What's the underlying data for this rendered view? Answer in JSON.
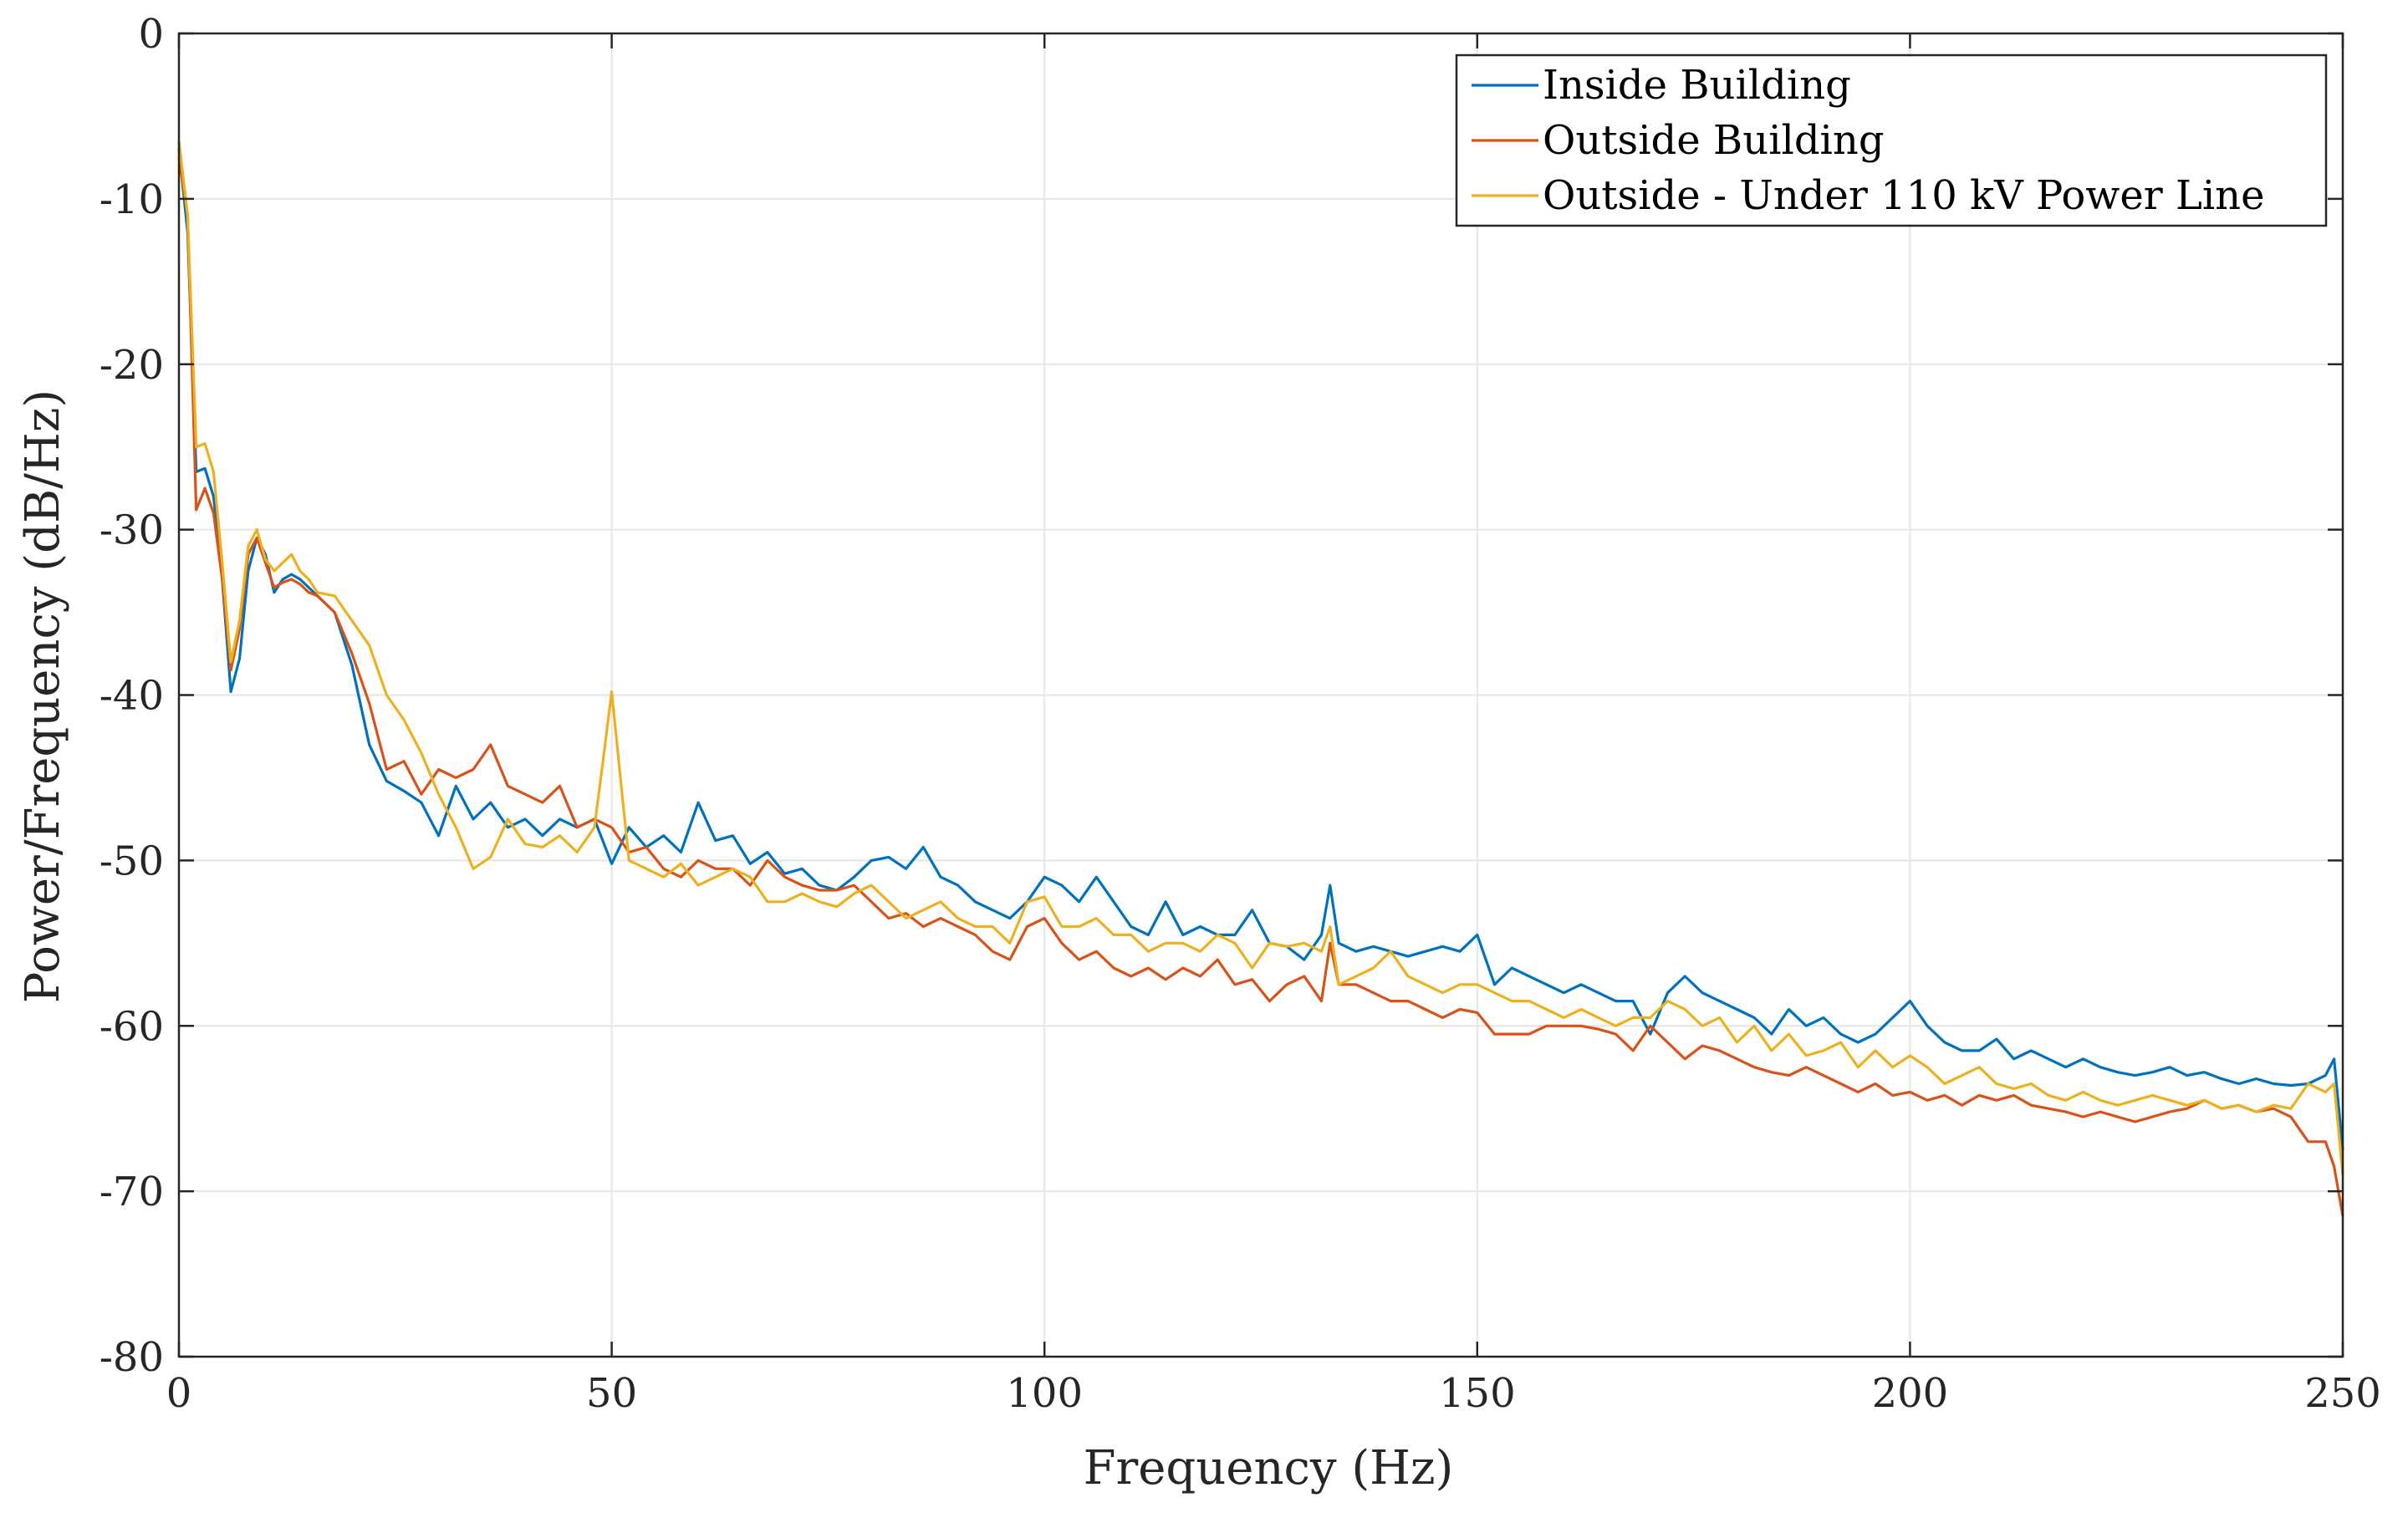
{
  "chart_data": {
    "type": "line",
    "title": "",
    "xlabel": "Frequency (Hz)",
    "ylabel": "Power/Frequency (dB/Hz)",
    "xlim": [
      0,
      250
    ],
    "ylim": [
      -80,
      0
    ],
    "xticks": [
      0,
      50,
      100,
      150,
      200,
      250
    ],
    "yticks": [
      0,
      -10,
      -20,
      -30,
      -40,
      -50,
      -60,
      -70,
      -80
    ],
    "grid": true,
    "legend_position": "top-right",
    "series": [
      {
        "name": "Inside Building",
        "color": "#0072BD",
        "x": [
          0,
          1,
          2,
          3,
          4,
          5,
          6,
          7,
          8,
          9,
          10,
          11,
          12,
          13,
          14,
          15,
          16,
          18,
          20,
          22,
          24,
          26,
          28,
          30,
          32,
          34,
          36,
          38,
          40,
          42,
          44,
          46,
          48,
          50,
          52,
          54,
          56,
          58,
          60,
          62,
          64,
          66,
          68,
          70,
          72,
          74,
          76,
          78,
          80,
          82,
          84,
          86,
          88,
          90,
          92,
          94,
          96,
          98,
          100,
          102,
          104,
          106,
          108,
          110,
          112,
          114,
          116,
          118,
          120,
          122,
          124,
          126,
          128,
          130,
          132,
          133,
          134,
          136,
          138,
          140,
          142,
          144,
          146,
          148,
          150,
          152,
          154,
          156,
          158,
          160,
          162,
          164,
          166,
          168,
          170,
          172,
          174,
          176,
          178,
          180,
          182,
          184,
          186,
          188,
          190,
          192,
          194,
          196,
          198,
          200,
          202,
          204,
          206,
          208,
          210,
          212,
          214,
          216,
          218,
          220,
          222,
          224,
          226,
          228,
          230,
          232,
          234,
          236,
          238,
          240,
          242,
          244,
          246,
          248,
          249,
          250
        ],
        "values": [
          -7,
          -12,
          -26.5,
          -26.3,
          -28,
          -33,
          -39.8,
          -37.8,
          -32.5,
          -30.5,
          -31.5,
          -33.8,
          -33,
          -32.7,
          -33,
          -33.5,
          -34,
          -35,
          -38.2,
          -43,
          -45.2,
          -45.8,
          -46.5,
          -48.5,
          -45.5,
          -47.5,
          -46.5,
          -48,
          -47.5,
          -48.5,
          -47.5,
          -48,
          -47.5,
          -50.2,
          -48,
          -49.2,
          -48.5,
          -49.5,
          -46.5,
          -48.8,
          -48.5,
          -50.2,
          -49.5,
          -50.8,
          -50.5,
          -51.5,
          -51.8,
          -51,
          -50,
          -49.8,
          -50.5,
          -49.2,
          -51,
          -51.5,
          -52.5,
          -53,
          -53.5,
          -52.5,
          -51,
          -51.5,
          -52.5,
          -51,
          -52.5,
          -54,
          -54.5,
          -52.5,
          -54.5,
          -54,
          -54.5,
          -54.5,
          -53,
          -55,
          -55.2,
          -56,
          -54.5,
          -51.5,
          -55,
          -55.5,
          -55.2,
          -55.5,
          -55.8,
          -55.5,
          -55.2,
          -55.5,
          -54.5,
          -57.5,
          -56.5,
          -57,
          -57.5,
          -58,
          -57.5,
          -58,
          -58.5,
          -58.5,
          -60.5,
          -58,
          -57,
          -58,
          -58.5,
          -59,
          -59.5,
          -60.5,
          -59,
          -60,
          -59.5,
          -60.5,
          -61,
          -60.5,
          -59.5,
          -58.5,
          -60,
          -61,
          -61.5,
          -61.5,
          -60.8,
          -62,
          -61.5,
          -62,
          -62.5,
          -62,
          -62.5,
          -62.8,
          -63,
          -62.8,
          -62.5,
          -63,
          -62.8,
          -63.2,
          -63.5,
          -63.2,
          -63.5,
          -63.6,
          -63.5,
          -63,
          -62,
          -67.5
        ]
      },
      {
        "name": "Outside Building",
        "color": "#D95319",
        "x": [
          0,
          1,
          2,
          3,
          4,
          5,
          6,
          7,
          8,
          9,
          10,
          11,
          12,
          13,
          14,
          15,
          16,
          18,
          20,
          22,
          24,
          26,
          28,
          30,
          32,
          34,
          36,
          38,
          40,
          42,
          44,
          46,
          48,
          50,
          52,
          54,
          56,
          58,
          60,
          62,
          64,
          66,
          68,
          70,
          72,
          74,
          76,
          78,
          80,
          82,
          84,
          86,
          88,
          90,
          92,
          94,
          96,
          98,
          100,
          102,
          104,
          106,
          108,
          110,
          112,
          114,
          116,
          118,
          120,
          122,
          124,
          126,
          128,
          130,
          132,
          133,
          134,
          136,
          138,
          140,
          142,
          144,
          146,
          148,
          150,
          152,
          154,
          156,
          158,
          160,
          162,
          164,
          166,
          168,
          170,
          172,
          174,
          176,
          178,
          180,
          182,
          184,
          186,
          188,
          190,
          192,
          194,
          196,
          198,
          200,
          202,
          204,
          206,
          208,
          210,
          212,
          214,
          216,
          218,
          220,
          222,
          224,
          226,
          228,
          230,
          232,
          234,
          236,
          238,
          240,
          242,
          244,
          246,
          248,
          249,
          250
        ],
        "values": [
          -7.5,
          -11,
          -28.8,
          -27.5,
          -29,
          -33,
          -38.5,
          -36,
          -31.5,
          -30.5,
          -32,
          -33.5,
          -33.2,
          -33,
          -33.3,
          -33.8,
          -34,
          -35,
          -37.5,
          -40.5,
          -44.5,
          -44,
          -46,
          -44.5,
          -45,
          -44.5,
          -43,
          -45.5,
          -46,
          -46.5,
          -45.5,
          -48,
          -47.5,
          -48,
          -49.5,
          -49.2,
          -50.5,
          -51,
          -50,
          -50.5,
          -50.5,
          -51.5,
          -50,
          -51,
          -51.5,
          -51.8,
          -51.8,
          -51.5,
          -52.5,
          -53.5,
          -53.2,
          -54,
          -53.5,
          -54,
          -54.5,
          -55.5,
          -56,
          -54,
          -53.5,
          -55,
          -56,
          -55.5,
          -56.5,
          -57,
          -56.5,
          -57.2,
          -56.5,
          -57,
          -56,
          -57.5,
          -57.2,
          -58.5,
          -57.5,
          -57,
          -58.5,
          -55,
          -57.5,
          -57.5,
          -58,
          -58.5,
          -58.5,
          -59,
          -59.5,
          -59,
          -59.2,
          -60.5,
          -60.5,
          -60.5,
          -60,
          -60,
          -60,
          -60.2,
          -60.5,
          -61.5,
          -60,
          -61,
          -62,
          -61.2,
          -61.5,
          -62,
          -62.5,
          -62.8,
          -63,
          -62.5,
          -63,
          -63.5,
          -64,
          -63.5,
          -64.2,
          -64,
          -64.5,
          -64.2,
          -64.8,
          -64.2,
          -64.5,
          -64.2,
          -64.8,
          -65,
          -65.2,
          -65.5,
          -65.2,
          -65.5,
          -65.8,
          -65.5,
          -65.2,
          -65,
          -64.5,
          -65,
          -64.8,
          -65.2,
          -65,
          -65.5,
          -67,
          -67,
          -68.5,
          -71.5
        ]
      },
      {
        "name": "Outside - Under 110 kV Power Line",
        "color": "#EDB120",
        "x": [
          0,
          1,
          2,
          3,
          4,
          5,
          6,
          7,
          8,
          9,
          10,
          11,
          12,
          13,
          14,
          15,
          16,
          18,
          20,
          22,
          24,
          26,
          28,
          30,
          32,
          34,
          36,
          38,
          40,
          42,
          44,
          46,
          48,
          49,
          50,
          51,
          52,
          54,
          56,
          58,
          60,
          62,
          64,
          66,
          68,
          70,
          72,
          74,
          76,
          78,
          80,
          82,
          84,
          86,
          88,
          90,
          92,
          94,
          96,
          98,
          100,
          102,
          104,
          106,
          108,
          110,
          112,
          114,
          116,
          118,
          120,
          122,
          124,
          126,
          128,
          130,
          132,
          133,
          134,
          136,
          138,
          140,
          142,
          144,
          146,
          148,
          150,
          152,
          154,
          156,
          158,
          160,
          162,
          164,
          166,
          168,
          170,
          172,
          174,
          176,
          178,
          180,
          182,
          184,
          186,
          188,
          190,
          192,
          194,
          196,
          198,
          200,
          202,
          204,
          206,
          208,
          210,
          212,
          214,
          216,
          218,
          220,
          222,
          224,
          226,
          228,
          230,
          232,
          234,
          236,
          238,
          240,
          242,
          244,
          246,
          248,
          249,
          250
        ],
        "values": [
          -6.5,
          -11,
          -25,
          -24.8,
          -26.5,
          -32,
          -38,
          -35.5,
          -31,
          -30,
          -31.8,
          -32.5,
          -32,
          -31.5,
          -32.5,
          -33,
          -33.8,
          -34,
          -35.5,
          -37,
          -40,
          -41.5,
          -43.5,
          -46,
          -48,
          -50.5,
          -49.8,
          -47.5,
          -49,
          -49.2,
          -48.5,
          -49.5,
          -48,
          -44,
          -39.8,
          -45,
          -50,
          -50.5,
          -51,
          -50.2,
          -51.5,
          -51,
          -50.5,
          -51,
          -52.5,
          -52.5,
          -52,
          -52.5,
          -52.8,
          -52,
          -51.5,
          -52.5,
          -53.5,
          -53,
          -52.5,
          -53.5,
          -54,
          -54,
          -55,
          -52.5,
          -52.2,
          -54,
          -54,
          -53.5,
          -54.5,
          -54.5,
          -55.5,
          -55,
          -55,
          -55.5,
          -54.5,
          -55,
          -56.5,
          -55,
          -55.2,
          -55,
          -55.5,
          -54,
          -57.5,
          -57,
          -56.5,
          -55.5,
          -57,
          -57.5,
          -58,
          -57.5,
          -57.5,
          -58,
          -58.5,
          -58.5,
          -59,
          -59.5,
          -59,
          -59.5,
          -60,
          -59.5,
          -59.5,
          -58.5,
          -59,
          -60,
          -59.5,
          -61,
          -60,
          -61.5,
          -60.5,
          -61.8,
          -61.5,
          -61,
          -62.5,
          -61.5,
          -62.5,
          -61.8,
          -62.5,
          -63.5,
          -63,
          -62.5,
          -63.5,
          -63.8,
          -63.5,
          -64.2,
          -64.5,
          -64,
          -64.5,
          -64.8,
          -64.5,
          -64.2,
          -64.5,
          -64.8,
          -64.5,
          -65,
          -64.8,
          -65.2,
          -64.8,
          -65,
          -63.5,
          -64,
          -63.5,
          -69
        ]
      }
    ]
  }
}
